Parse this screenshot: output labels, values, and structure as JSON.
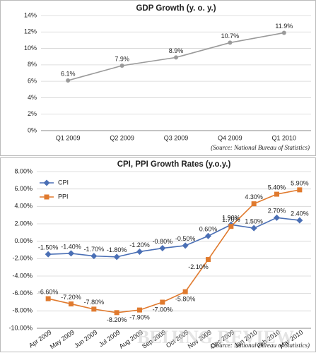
{
  "chart_data": [
    {
      "type": "line",
      "title": "GDP Growth (y. o. y.)",
      "categories": [
        "Q1 2009",
        "Q2 2009",
        "Q3 2009",
        "Q4 2009",
        "Q1 2010"
      ],
      "values": [
        6.1,
        7.9,
        8.9,
        10.7,
        11.9
      ],
      "value_labels": [
        "6.1%",
        "7.9%",
        "8.9%",
        "10.7%",
        "11.9%"
      ],
      "color": "#9a9a9a",
      "ylim": [
        0,
        14
      ],
      "yticks": [
        {
          "value": 0,
          "label": "0%"
        },
        {
          "value": 2,
          "label": "2%"
        },
        {
          "value": 4,
          "label": "4%"
        },
        {
          "value": 6,
          "label": "6%"
        },
        {
          "value": 8,
          "label": "8%"
        },
        {
          "value": 10,
          "label": "10%"
        },
        {
          "value": 12,
          "label": "12%"
        },
        {
          "value": 14,
          "label": "14%"
        }
      ],
      "grid": true,
      "source": "(Source: National Bureau of Statistics)"
    },
    {
      "type": "line",
      "title": "CPI, PPI Growth Rates (y.o.y.)",
      "categories": [
        "Apr 2009",
        "May 2009",
        "Jun 2009",
        "Jul 2009",
        "Aug 2009",
        "Sep 2009",
        "Oct 2009",
        "Nov 2009",
        "Dec 2009",
        "Jan 2010",
        "Feb 2010",
        "Mar 2010"
      ],
      "series": [
        {
          "name": "CPI",
          "color": "#4a6fb5",
          "marker": "diamond",
          "values": [
            -1.5,
            -1.4,
            -1.7,
            -1.8,
            -1.2,
            -0.8,
            -0.5,
            0.6,
            1.9,
            1.5,
            2.7,
            2.4
          ],
          "value_labels": [
            "-1.50%",
            "-1.40%",
            "-1.70%",
            "-1.80%",
            "-1.20%",
            "-0.80%",
            "-0.50%",
            "0.60%",
            "1.90%",
            "1.50%",
            "2.70%",
            "2.40%"
          ]
        },
        {
          "name": "PPI",
          "color": "#e07a2e",
          "marker": "square",
          "values": [
            -6.6,
            -7.2,
            -7.8,
            -8.2,
            -7.9,
            -7.0,
            -5.8,
            -2.1,
            1.7,
            4.3,
            5.4,
            5.9
          ],
          "value_labels": [
            "-6.60%",
            "-7.20%",
            "-7.80%",
            "-8.20%",
            "-7.90%",
            "-7.00%",
            "-5.80%",
            "-2.10%",
            "1.70%",
            "4.30%",
            "5.40%",
            "5.90%"
          ]
        }
      ],
      "ylim": [
        -10,
        8
      ],
      "yticks": [
        {
          "value": -10,
          "label": "-10.00%"
        },
        {
          "value": -8,
          "label": "-8.00%"
        },
        {
          "value": -6,
          "label": "-6.00%"
        },
        {
          "value": -4,
          "label": "-4.00%"
        },
        {
          "value": -2,
          "label": "-2.00%"
        },
        {
          "value": 0,
          "label": "0.00%"
        },
        {
          "value": 2,
          "label": "2.00%"
        },
        {
          "value": 4,
          "label": "4.00%"
        },
        {
          "value": 6,
          "label": "6.00%"
        },
        {
          "value": 8,
          "label": "8.00%"
        }
      ],
      "grid": true,
      "legend": "top-left",
      "source": "(Source: National Bureau of Statistics)"
    }
  ],
  "watermark": "BEIJING REVIEW"
}
